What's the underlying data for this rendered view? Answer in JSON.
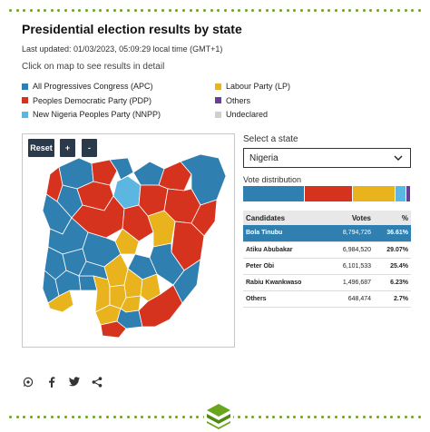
{
  "header": {
    "title": "Presidential election results by state",
    "last_updated": "Last updated: 01/03/2023, 05:09:29 local time (GMT+1)",
    "hint": "Click on map to see results in detail"
  },
  "legend": [
    {
      "label": "All Progressives Congress (APC)",
      "color": "#2f7fb0"
    },
    {
      "label": "Labour Party (LP)",
      "color": "#e8b31c"
    },
    {
      "label": "Peoples Democratic Party (PDP)",
      "color": "#d6331f"
    },
    {
      "label": "Others",
      "color": "#6a3d9a"
    },
    {
      "label": "New Nigeria Peoples Party (NNPP)",
      "color": "#5bb6e2"
    },
    {
      "label": "Undeclared",
      "color": "#cfcfcf"
    }
  ],
  "map": {
    "reset_label": "Reset",
    "zoom_in_label": "+",
    "zoom_out_label": "-"
  },
  "selector": {
    "label": "Select a state",
    "value": "Nigeria"
  },
  "vote_distribution": {
    "label": "Vote distribution",
    "segments": [
      {
        "party": "APC",
        "color": "#2f7fb0",
        "share": 36.61
      },
      {
        "party": "PDP",
        "color": "#d6331f",
        "share": 29.07
      },
      {
        "party": "LP",
        "color": "#e8b31c",
        "share": 25.4
      },
      {
        "party": "NNPP",
        "color": "#5bb6e2",
        "share": 6.23
      },
      {
        "party": "Others",
        "color": "#6a3d9a",
        "share": 2.7
      }
    ]
  },
  "results_table": {
    "headers": {
      "candidates": "Candidates",
      "votes": "Votes",
      "pct": "%"
    },
    "rows": [
      {
        "candidate": "Bola Tinubu",
        "votes": "8,794,726",
        "pct": "36.61%"
      },
      {
        "candidate": "Atiku Abubakar",
        "votes": "6,984,520",
        "pct": "29.07%"
      },
      {
        "candidate": "Peter Obi",
        "votes": "6,101,533",
        "pct": "25.4%"
      },
      {
        "candidate": "Rabiu Kwankwaso",
        "votes": "1,496,687",
        "pct": "6.23%"
      },
      {
        "candidate": "Others",
        "votes": "648,474",
        "pct": "2.7%"
      }
    ]
  },
  "share_icons": [
    "whatsapp-icon",
    "facebook-icon",
    "twitter-icon",
    "share-icon"
  ],
  "colors": {
    "accent_green": "#6aa51e",
    "button_dark": "#2b3a4a"
  }
}
